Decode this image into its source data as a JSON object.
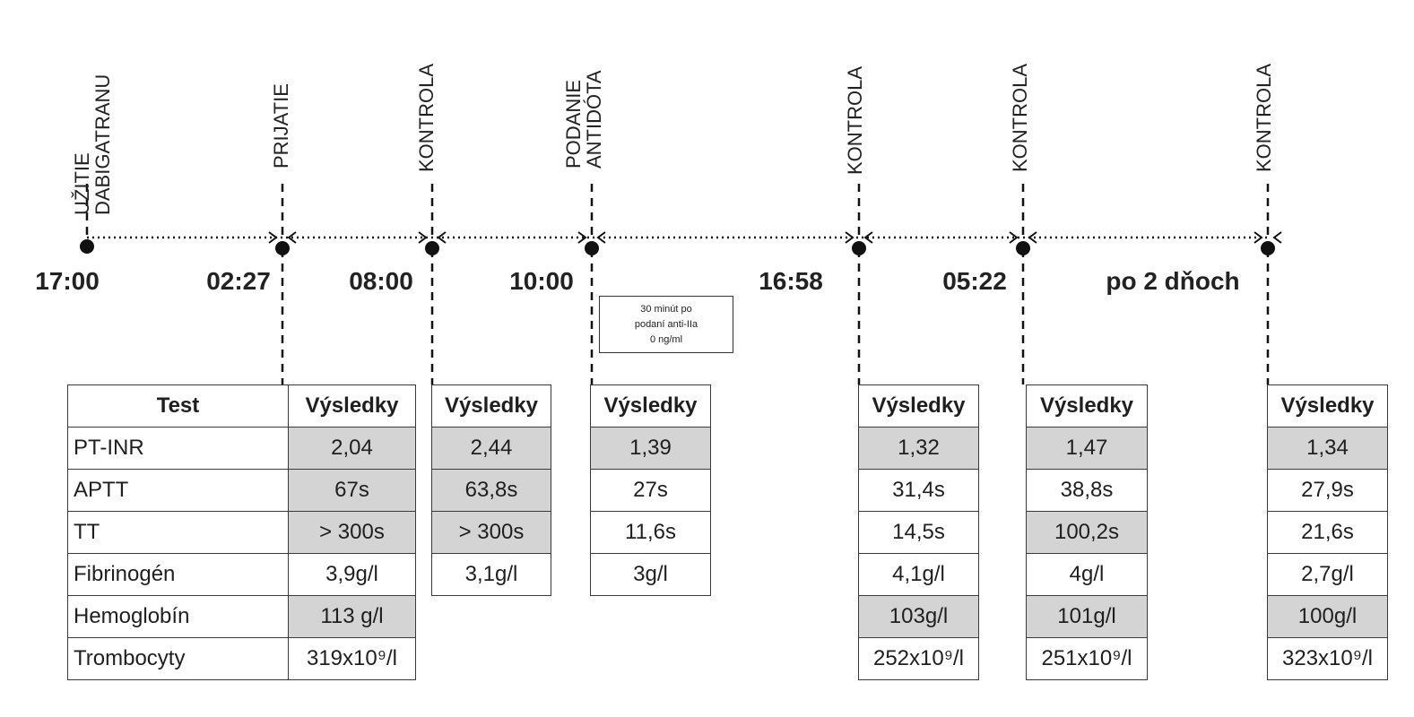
{
  "events": [
    {
      "label_lines": [
        "UŽITIE",
        "DABIGATRANU"
      ],
      "time": "17:00"
    },
    {
      "label_lines": [
        "PRIJATIE"
      ],
      "time": "02:27"
    },
    {
      "label_lines": [
        "KONTROLA"
      ],
      "time": "08:00"
    },
    {
      "label_lines": [
        "PODANIE",
        "ANTIDÓTA"
      ],
      "time": "10:00"
    },
    {
      "label_lines": [
        "KONTROLA"
      ],
      "time": "16:58"
    },
    {
      "label_lines": [
        "KONTROLA"
      ],
      "time": "05:22"
    },
    {
      "label_lines": [
        "KONTROLA"
      ],
      "time": "po 2 dňoch"
    }
  ],
  "note": {
    "lines": [
      "30 minút po",
      "podaní anti-IIa",
      "0 ng/ml"
    ]
  },
  "test_table": {
    "header": "Test",
    "tests": [
      "PT-INR",
      "APTT",
      "TT",
      "Fibrinogén",
      "Hemoglobín",
      "Trombocyty"
    ]
  },
  "results_header": "Výsledky",
  "result_columns": [
    {
      "values": [
        "2,04",
        "67s",
        "> 300s",
        "3,9g/l",
        "113 g/l",
        "319x10⁹/l"
      ],
      "abnormal": [
        true,
        true,
        true,
        false,
        true,
        false
      ]
    },
    {
      "values": [
        "2,44",
        "63,8s",
        "> 300s",
        "3,1g/l"
      ],
      "abnormal": [
        true,
        true,
        true,
        false
      ]
    },
    {
      "values": [
        "1,39",
        "27s",
        "11,6s",
        "3g/l"
      ],
      "abnormal": [
        true,
        false,
        false,
        false
      ]
    },
    {
      "values": [
        "1,32",
        "31,4s",
        "14,5s",
        "4,1g/l",
        "103g/l",
        "252x10⁹/l"
      ],
      "abnormal": [
        true,
        false,
        false,
        false,
        true,
        false
      ]
    },
    {
      "values": [
        "1,47",
        "38,8s",
        "100,2s",
        "4g/l",
        "101g/l",
        "251x10⁹/l"
      ],
      "abnormal": [
        true,
        false,
        true,
        false,
        true,
        false
      ]
    },
    {
      "values": [
        "1,34",
        "27,9s",
        "21,6s",
        "2,7g/l",
        "100g/l",
        "323x10⁹/l"
      ],
      "abnormal": [
        true,
        false,
        false,
        false,
        true,
        false
      ]
    }
  ],
  "colors": {
    "abnormal_fill": "#d4d4d4",
    "line": "#111111"
  }
}
